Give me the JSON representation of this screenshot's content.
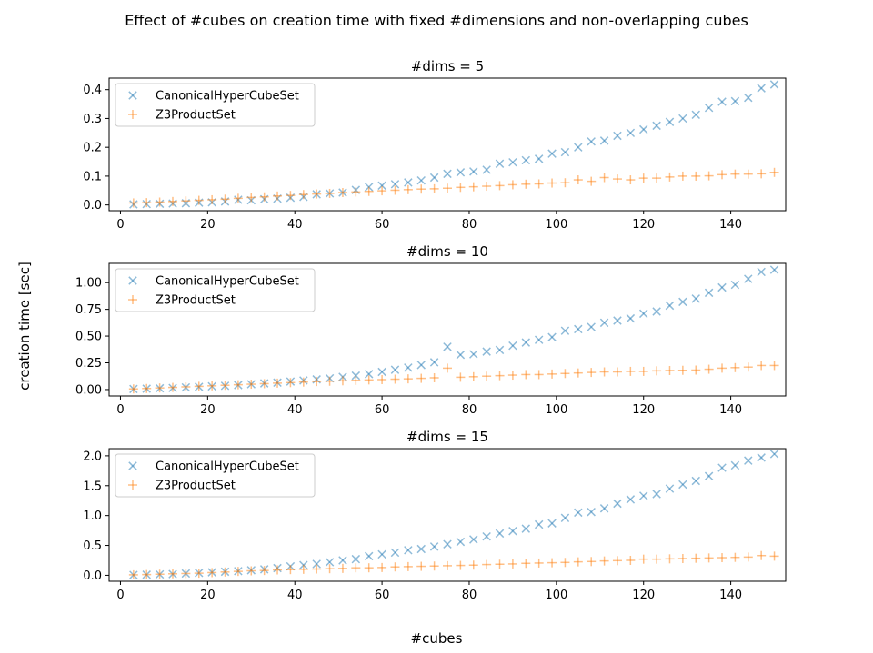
{
  "figure": {
    "suptitle": "Effect of #cubes on creation time with fixed #dimensions and non-overlapping cubes",
    "xlabel": "#cubes",
    "ylabel": "creation time [sec]"
  },
  "colors": {
    "CanonicalHyperCubeSet": "#1f77b4",
    "Z3ProductSet": "#ff7f0e"
  },
  "chart_data": [
    {
      "type": "scatter",
      "title": "#dims = 5",
      "xlim": [
        0,
        150
      ],
      "ylim": [
        -0.02,
        0.44
      ],
      "x_ticks": [
        0,
        20,
        40,
        60,
        80,
        100,
        120,
        140
      ],
      "y_ticks": [
        0.0,
        0.1,
        0.2,
        0.3,
        0.4
      ],
      "y_tick_labels": [
        "0.0",
        "0.1",
        "0.2",
        "0.3",
        "0.4"
      ],
      "legend_position": "upper-left",
      "x": [
        3,
        6,
        9,
        12,
        15,
        18,
        21,
        24,
        27,
        30,
        33,
        36,
        39,
        42,
        45,
        48,
        51,
        54,
        57,
        60,
        63,
        66,
        69,
        72,
        75,
        78,
        81,
        84,
        87,
        90,
        93,
        96,
        99,
        102,
        105,
        108,
        111,
        114,
        117,
        120,
        123,
        126,
        129,
        132,
        135,
        138,
        141,
        144,
        147,
        150
      ],
      "series": [
        {
          "name": "CanonicalHyperCubeSet",
          "marker": "x",
          "values": [
            0.002,
            0.003,
            0.004,
            0.005,
            0.006,
            0.008,
            0.009,
            0.012,
            0.018,
            0.016,
            0.02,
            0.022,
            0.025,
            0.028,
            0.037,
            0.04,
            0.043,
            0.052,
            0.062,
            0.067,
            0.072,
            0.078,
            0.085,
            0.095,
            0.108,
            0.113,
            0.116,
            0.122,
            0.143,
            0.148,
            0.155,
            0.16,
            0.178,
            0.183,
            0.2,
            0.22,
            0.223,
            0.24,
            0.25,
            0.262,
            0.275,
            0.288,
            0.3,
            0.313,
            0.337,
            0.358,
            0.36,
            0.372,
            0.405,
            0.418
          ]
        },
        {
          "name": "Z3ProductSet",
          "marker": "+",
          "values": [
            0.007,
            0.008,
            0.01,
            0.012,
            0.014,
            0.016,
            0.018,
            0.02,
            0.023,
            0.026,
            0.028,
            0.031,
            0.033,
            0.036,
            0.038,
            0.04,
            0.043,
            0.045,
            0.047,
            0.049,
            0.051,
            0.053,
            0.055,
            0.056,
            0.058,
            0.061,
            0.063,
            0.065,
            0.067,
            0.07,
            0.072,
            0.073,
            0.076,
            0.077,
            0.087,
            0.082,
            0.095,
            0.09,
            0.087,
            0.093,
            0.093,
            0.097,
            0.1,
            0.1,
            0.101,
            0.105,
            0.107,
            0.107,
            0.108,
            0.113
          ]
        }
      ]
    },
    {
      "type": "scatter",
      "title": "#dims = 10",
      "xlim": [
        0,
        150
      ],
      "ylim": [
        -0.06,
        1.18
      ],
      "x_ticks": [
        0,
        20,
        40,
        60,
        80,
        100,
        120,
        140
      ],
      "y_ticks": [
        0.0,
        0.25,
        0.5,
        0.75,
        1.0
      ],
      "y_tick_labels": [
        "0.00",
        "0.25",
        "0.50",
        "0.75",
        "1.00"
      ],
      "legend_position": "upper-left",
      "x": [
        3,
        6,
        9,
        12,
        15,
        18,
        21,
        24,
        27,
        30,
        33,
        36,
        39,
        42,
        45,
        48,
        51,
        54,
        57,
        60,
        63,
        66,
        69,
        72,
        75,
        78,
        81,
        84,
        87,
        90,
        93,
        96,
        99,
        102,
        105,
        108,
        111,
        114,
        117,
        120,
        123,
        126,
        129,
        132,
        135,
        138,
        141,
        144,
        147,
        150
      ],
      "series": [
        {
          "name": "CanonicalHyperCubeSet",
          "marker": "x",
          "values": [
            0.005,
            0.008,
            0.012,
            0.015,
            0.02,
            0.025,
            0.03,
            0.035,
            0.042,
            0.05,
            0.058,
            0.065,
            0.075,
            0.085,
            0.095,
            0.105,
            0.118,
            0.13,
            0.145,
            0.165,
            0.185,
            0.205,
            0.23,
            0.255,
            0.4,
            0.325,
            0.33,
            0.355,
            0.37,
            0.41,
            0.44,
            0.465,
            0.49,
            0.55,
            0.565,
            0.585,
            0.625,
            0.645,
            0.665,
            0.71,
            0.73,
            0.785,
            0.82,
            0.85,
            0.905,
            0.955,
            0.98,
            1.035,
            1.1,
            1.12
          ]
        },
        {
          "name": "Z3ProductSet",
          "marker": "+",
          "values": [
            0.006,
            0.01,
            0.015,
            0.02,
            0.025,
            0.03,
            0.035,
            0.04,
            0.045,
            0.05,
            0.055,
            0.06,
            0.065,
            0.07,
            0.075,
            0.078,
            0.082,
            0.086,
            0.09,
            0.093,
            0.097,
            0.1,
            0.105,
            0.11,
            0.2,
            0.115,
            0.12,
            0.125,
            0.13,
            0.135,
            0.14,
            0.14,
            0.145,
            0.15,
            0.155,
            0.16,
            0.165,
            0.165,
            0.17,
            0.17,
            0.175,
            0.178,
            0.18,
            0.182,
            0.19,
            0.2,
            0.205,
            0.21,
            0.225,
            0.225
          ]
        }
      ]
    },
    {
      "type": "scatter",
      "title": "#dims = 15",
      "xlim": [
        0,
        150
      ],
      "ylim": [
        -0.1,
        2.12
      ],
      "x_ticks": [
        0,
        20,
        40,
        60,
        80,
        100,
        120,
        140
      ],
      "y_ticks": [
        0.0,
        0.5,
        1.0,
        1.5,
        2.0
      ],
      "y_tick_labels": [
        "0.0",
        "0.5",
        "1.0",
        "1.5",
        "2.0"
      ],
      "legend_position": "upper-left",
      "x": [
        3,
        6,
        9,
        12,
        15,
        18,
        21,
        24,
        27,
        30,
        33,
        36,
        39,
        42,
        45,
        48,
        51,
        54,
        57,
        60,
        63,
        66,
        69,
        72,
        75,
        78,
        81,
        84,
        87,
        90,
        93,
        96,
        99,
        102,
        105,
        108,
        111,
        114,
        117,
        120,
        123,
        126,
        129,
        132,
        135,
        138,
        141,
        144,
        147,
        150
      ],
      "series": [
        {
          "name": "CanonicalHyperCubeSet",
          "marker": "x",
          "values": [
            0.005,
            0.01,
            0.015,
            0.02,
            0.03,
            0.04,
            0.05,
            0.06,
            0.07,
            0.085,
            0.1,
            0.12,
            0.15,
            0.17,
            0.19,
            0.22,
            0.25,
            0.27,
            0.32,
            0.35,
            0.38,
            0.42,
            0.44,
            0.48,
            0.52,
            0.56,
            0.6,
            0.65,
            0.7,
            0.74,
            0.78,
            0.85,
            0.87,
            0.96,
            1.05,
            1.06,
            1.12,
            1.2,
            1.27,
            1.33,
            1.36,
            1.45,
            1.52,
            1.58,
            1.66,
            1.8,
            1.84,
            1.92,
            1.97,
            2.03
          ]
        },
        {
          "name": "Z3ProductSet",
          "marker": "+",
          "values": [
            0.008,
            0.012,
            0.018,
            0.025,
            0.03,
            0.035,
            0.045,
            0.055,
            0.065,
            0.075,
            0.08,
            0.09,
            0.095,
            0.1,
            0.105,
            0.11,
            0.115,
            0.125,
            0.125,
            0.13,
            0.14,
            0.145,
            0.15,
            0.155,
            0.16,
            0.165,
            0.17,
            0.18,
            0.185,
            0.19,
            0.2,
            0.205,
            0.21,
            0.215,
            0.225,
            0.23,
            0.24,
            0.245,
            0.25,
            0.27,
            0.27,
            0.275,
            0.28,
            0.285,
            0.29,
            0.295,
            0.3,
            0.305,
            0.33,
            0.32
          ]
        }
      ]
    }
  ]
}
